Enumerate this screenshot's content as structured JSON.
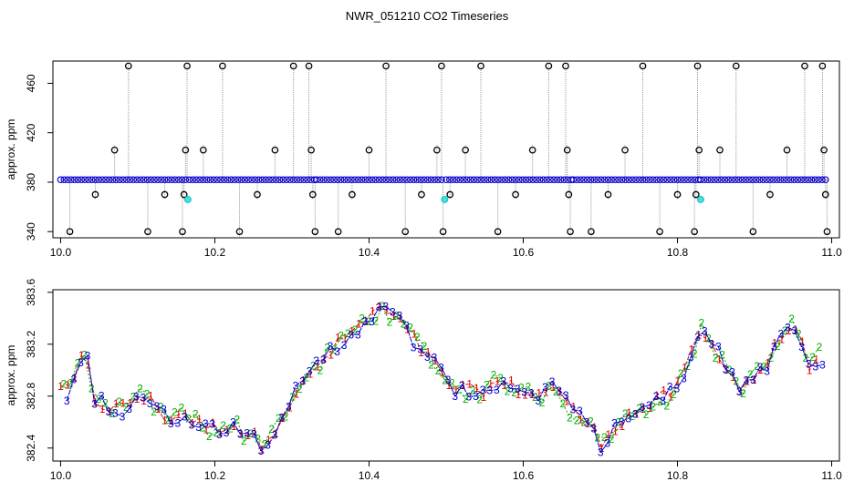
{
  "chart_data": [
    {
      "type": "scatter",
      "title": "NWR_051210  CO2 Timeseries",
      "xlabel": "",
      "ylabel": "approx. ppm",
      "xlim": [
        9.99,
        11.01
      ],
      "ylim": [
        335,
        478
      ],
      "xticks": [
        "10.0",
        "10.2",
        "10.4",
        "10.6",
        "10.8",
        "11.0"
      ],
      "yticks": [
        "340",
        "380",
        "420",
        "460"
      ],
      "baseline": 382,
      "baseline_segments": [
        [
          10.0,
          10.165
        ],
        [
          10.167,
          10.33
        ],
        [
          10.332,
          10.498
        ],
        [
          10.5,
          10.663
        ],
        [
          10.665,
          10.828
        ],
        [
          10.83,
          10.995
        ]
      ],
      "excursions": [
        [
          10.012,
          340
        ],
        [
          10.045,
          370
        ],
        [
          10.07,
          406
        ],
        [
          10.088,
          474
        ],
        [
          10.113,
          340
        ],
        [
          10.135,
          370
        ],
        [
          10.158,
          340
        ],
        [
          10.16,
          370
        ],
        [
          10.162,
          406
        ],
        [
          10.164,
          474
        ],
        [
          10.185,
          406
        ],
        [
          10.21,
          474
        ],
        [
          10.232,
          340
        ],
        [
          10.255,
          370
        ],
        [
          10.278,
          406
        ],
        [
          10.302,
          474
        ],
        [
          10.322,
          474
        ],
        [
          10.325,
          406
        ],
        [
          10.327,
          370
        ],
        [
          10.33,
          340
        ],
        [
          10.36,
          340
        ],
        [
          10.378,
          370
        ],
        [
          10.4,
          406
        ],
        [
          10.422,
          474
        ],
        [
          10.447,
          340
        ],
        [
          10.468,
          370
        ],
        [
          10.488,
          406
        ],
        [
          10.494,
          474
        ],
        [
          10.496,
          340
        ],
        [
          10.505,
          370
        ],
        [
          10.525,
          406
        ],
        [
          10.545,
          474
        ],
        [
          10.567,
          340
        ],
        [
          10.59,
          370
        ],
        [
          10.612,
          406
        ],
        [
          10.633,
          474
        ],
        [
          10.655,
          474
        ],
        [
          10.657,
          406
        ],
        [
          10.659,
          370
        ],
        [
          10.661,
          340
        ],
        [
          10.688,
          340
        ],
        [
          10.71,
          370
        ],
        [
          10.732,
          406
        ],
        [
          10.755,
          474
        ],
        [
          10.777,
          340
        ],
        [
          10.8,
          370
        ],
        [
          10.822,
          340
        ],
        [
          10.824,
          370
        ],
        [
          10.826,
          474
        ],
        [
          10.828,
          406
        ],
        [
          10.855,
          406
        ],
        [
          10.876,
          474
        ],
        [
          10.898,
          340
        ],
        [
          10.92,
          370
        ],
        [
          10.942,
          406
        ],
        [
          10.965,
          474
        ],
        [
          10.988,
          474
        ],
        [
          10.99,
          406
        ],
        [
          10.992,
          370
        ],
        [
          10.994,
          340
        ]
      ],
      "cyan_points": [
        [
          10.165,
          366
        ],
        [
          10.498,
          366
        ],
        [
          10.83,
          366
        ]
      ]
    },
    {
      "type": "line",
      "xlabel": "",
      "ylabel": "approx. ppm",
      "xlim": [
        9.99,
        11.01
      ],
      "ylim": [
        382.3,
        383.62
      ],
      "xticks": [
        "10.0",
        "10.2",
        "10.4",
        "10.6",
        "10.8",
        "11.0"
      ],
      "yticks": [
        "382.4",
        "382.8",
        "383.2",
        "383.6"
      ],
      "trend_x": [
        10.0,
        10.01,
        10.02,
        10.03,
        10.035,
        10.04,
        10.05,
        10.06,
        10.08,
        10.1,
        10.12,
        10.14,
        10.16,
        10.18,
        10.2,
        10.22,
        10.24,
        10.26,
        10.28,
        10.3,
        10.32,
        10.34,
        10.36,
        10.38,
        10.4,
        10.42,
        10.44,
        10.46,
        10.48,
        10.5,
        10.52,
        10.54,
        10.56,
        10.58,
        10.6,
        10.62,
        10.64,
        10.66,
        10.68,
        10.7,
        10.72,
        10.74,
        10.76,
        10.78,
        10.8,
        10.82,
        10.83,
        10.84,
        10.86,
        10.88,
        10.9,
        10.92,
        10.94,
        10.95,
        10.96,
        10.97,
        10.98
      ],
      "trend_y": [
        382.9,
        382.82,
        382.95,
        383.12,
        383.05,
        382.8,
        382.75,
        382.72,
        382.7,
        382.8,
        382.75,
        382.62,
        382.68,
        382.58,
        382.55,
        382.6,
        382.52,
        382.44,
        382.58,
        382.78,
        382.92,
        383.08,
        383.2,
        383.3,
        383.42,
        383.48,
        383.36,
        383.22,
        383.08,
        382.9,
        382.85,
        382.82,
        382.9,
        382.88,
        382.85,
        382.8,
        382.9,
        382.7,
        382.62,
        382.45,
        382.58,
        382.66,
        382.72,
        382.78,
        382.86,
        383.15,
        383.32,
        383.2,
        383.1,
        382.85,
        382.95,
        383.1,
        383.3,
        383.38,
        383.2,
        383.05,
        383.1
      ],
      "series": [
        {
          "name": "1",
          "color": "#e00000",
          "offset": 0.0,
          "phase": 0.0
        },
        {
          "name": "2",
          "color": "#00b000",
          "offset": 0.03,
          "phase": 0.004
        },
        {
          "name": "3",
          "color": "#0000cc",
          "offset": -0.03,
          "phase": 0.008
        }
      ],
      "n_points": 110
    }
  ]
}
